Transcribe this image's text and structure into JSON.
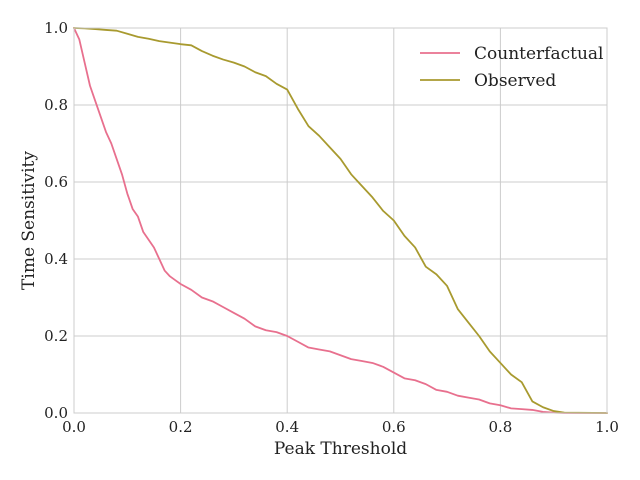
{
  "chart_data": {
    "type": "line",
    "title": "",
    "xlabel": "Peak Threshold",
    "ylabel": "Time Sensitivity",
    "xlim": [
      0,
      1
    ],
    "ylim": [
      0,
      1
    ],
    "xticks": [
      "0.0",
      "0.2",
      "0.4",
      "0.6",
      "0.8",
      "1.0"
    ],
    "yticks": [
      "0.0",
      "0.2",
      "0.4",
      "0.6",
      "0.8",
      "1.0"
    ],
    "grid": true,
    "legend_position": "top-right",
    "series": [
      {
        "name": "Counterfactual",
        "color": "#e8708e",
        "x": [
          0.0,
          0.01,
          0.02,
          0.03,
          0.04,
          0.05,
          0.06,
          0.07,
          0.08,
          0.09,
          0.1,
          0.11,
          0.12,
          0.13,
          0.14,
          0.15,
          0.16,
          0.17,
          0.18,
          0.19,
          0.2,
          0.22,
          0.24,
          0.26,
          0.28,
          0.3,
          0.32,
          0.34,
          0.36,
          0.38,
          0.4,
          0.42,
          0.44,
          0.46,
          0.48,
          0.5,
          0.52,
          0.54,
          0.56,
          0.58,
          0.6,
          0.62,
          0.64,
          0.66,
          0.68,
          0.7,
          0.72,
          0.74,
          0.76,
          0.78,
          0.8,
          0.82,
          0.84,
          0.86,
          0.88,
          0.9,
          0.92,
          1.0
        ],
        "y": [
          1.0,
          0.97,
          0.91,
          0.85,
          0.81,
          0.77,
          0.73,
          0.7,
          0.66,
          0.62,
          0.57,
          0.53,
          0.51,
          0.47,
          0.45,
          0.43,
          0.4,
          0.37,
          0.355,
          0.345,
          0.335,
          0.32,
          0.3,
          0.29,
          0.275,
          0.26,
          0.245,
          0.225,
          0.215,
          0.21,
          0.2,
          0.185,
          0.17,
          0.165,
          0.16,
          0.15,
          0.14,
          0.135,
          0.13,
          0.12,
          0.105,
          0.09,
          0.085,
          0.075,
          0.06,
          0.055,
          0.045,
          0.04,
          0.035,
          0.025,
          0.02,
          0.012,
          0.01,
          0.008,
          0.003,
          0.001,
          0.0,
          0.0
        ]
      },
      {
        "name": "Observed",
        "color": "#a89a2f",
        "x": [
          0.0,
          0.02,
          0.04,
          0.06,
          0.08,
          0.1,
          0.12,
          0.14,
          0.16,
          0.18,
          0.2,
          0.22,
          0.24,
          0.26,
          0.28,
          0.3,
          0.32,
          0.34,
          0.36,
          0.38,
          0.4,
          0.42,
          0.44,
          0.46,
          0.48,
          0.5,
          0.52,
          0.54,
          0.56,
          0.58,
          0.6,
          0.62,
          0.64,
          0.66,
          0.68,
          0.7,
          0.72,
          0.74,
          0.76,
          0.78,
          0.8,
          0.82,
          0.84,
          0.86,
          0.88,
          0.9,
          0.92,
          1.0
        ],
        "y": [
          1.0,
          0.999,
          0.997,
          0.995,
          0.993,
          0.985,
          0.977,
          0.972,
          0.966,
          0.962,
          0.958,
          0.955,
          0.94,
          0.928,
          0.918,
          0.91,
          0.9,
          0.885,
          0.875,
          0.855,
          0.84,
          0.79,
          0.745,
          0.72,
          0.69,
          0.66,
          0.62,
          0.59,
          0.56,
          0.525,
          0.5,
          0.46,
          0.43,
          0.38,
          0.36,
          0.33,
          0.27,
          0.235,
          0.2,
          0.16,
          0.13,
          0.1,
          0.08,
          0.03,
          0.015,
          0.005,
          0.001,
          0.0
        ]
      }
    ]
  }
}
